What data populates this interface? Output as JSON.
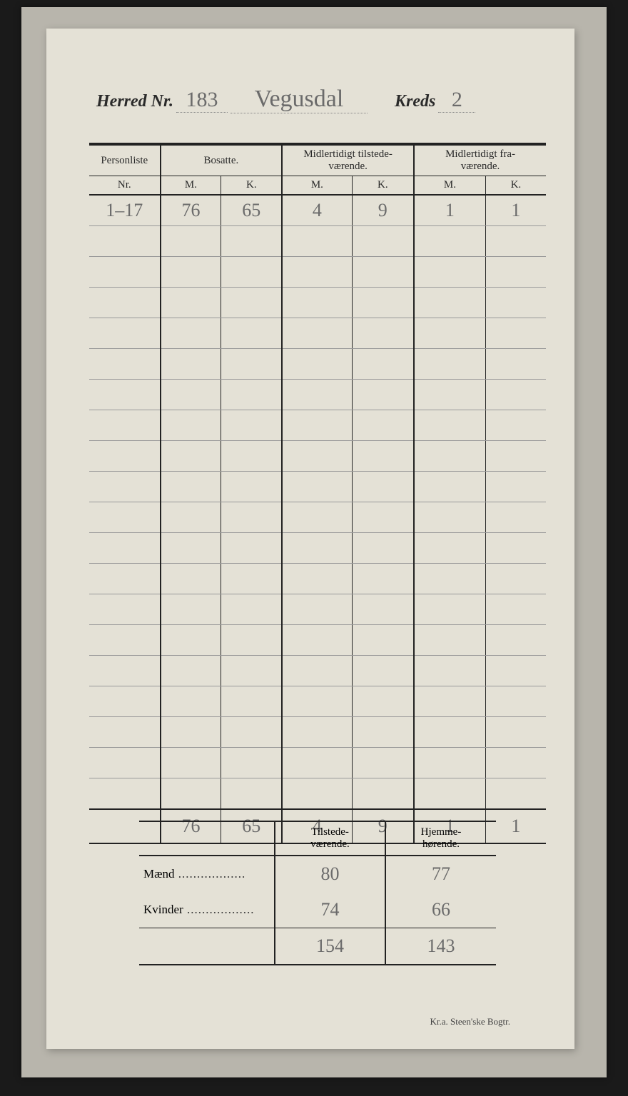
{
  "header": {
    "herred_label": "Herred Nr.",
    "herred_nr": "183",
    "herred_name": "Vegusdal",
    "kreds_label": "Kreds",
    "kreds_nr": "2"
  },
  "main_table": {
    "group_headers": {
      "personliste": "Personliste",
      "bosatte": "Bosatte.",
      "midlertidigt_tilstede": "Midlertidigt tilstede-\nværende.",
      "midlertidigt_fra": "Midlertidigt fra-\nværende."
    },
    "sub_headers": {
      "nr": "Nr.",
      "m": "M.",
      "k": "K."
    },
    "rows": [
      {
        "nr": "1–17",
        "bo_m": "76",
        "bo_k": "65",
        "mt_m": "4",
        "mt_k": "9",
        "mf_m": "1",
        "mf_k": "1"
      }
    ],
    "blank_row_count": 19,
    "totals": {
      "bo_m": "76",
      "bo_k": "65",
      "mt_m": "4",
      "mt_k": "9",
      "mf_m": "1",
      "mf_k": "1"
    }
  },
  "summary": {
    "col_headers": {
      "tilstede": "Tilstede-\nværende.",
      "hjemme": "Hjemme-\nhørende."
    },
    "rows": {
      "maend_label": "Mænd",
      "maend_tilstede": "80",
      "maend_hjemme": "77",
      "kvinder_label": "Kvinder",
      "kvinder_tilstede": "74",
      "kvinder_hjemme": "66",
      "total_tilstede": "154",
      "total_hjemme": "143"
    }
  },
  "imprint": "Kr.a.   Steen'ske Bogtr.",
  "colors": {
    "page_bg": "#e4e1d6",
    "frame_bg": "#b8b5ac",
    "ink": "#2a2a2a",
    "pencil": "#6b6b6b",
    "rule_light": "#999999"
  }
}
